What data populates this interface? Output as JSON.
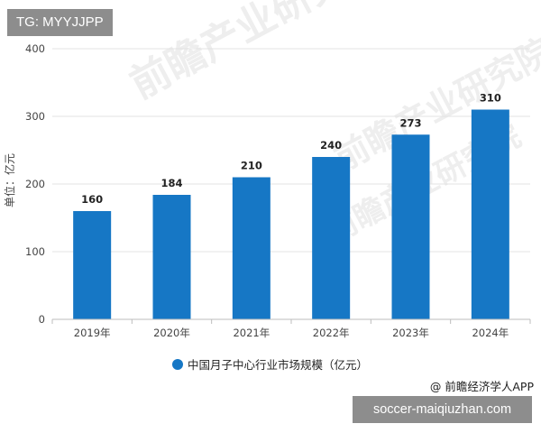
{
  "overlay_tag": "TG: MYYJJPP",
  "site_banner": "soccer-maiqiuzhan.com",
  "source_credit": "@ 前瞻经济学人APP",
  "watermark": "前瞻产业研究院",
  "colors": {
    "bar": "#1677c5",
    "grid": "#e3e3e3",
    "axis": "#bdbdbd",
    "tick_text": "#444444",
    "label_text": "#222222",
    "watermark": "#eeeeee"
  },
  "chart_data": {
    "type": "bar",
    "title": "",
    "xlabel": "",
    "ylabel": "单位：亿元",
    "categories": [
      "2019年",
      "2020年",
      "2021年",
      "2022年",
      "2023年",
      "2024年"
    ],
    "series": [
      {
        "name": "中国月子中心行业市场规模（亿元）",
        "values": [
          160,
          184,
          210,
          240,
          273,
          310
        ]
      }
    ],
    "data_labels": [
      "160",
      "184",
      "210",
      "240",
      "273",
      "310"
    ],
    "ylim": [
      0,
      400
    ],
    "yticks": [
      0,
      100,
      200,
      300,
      400
    ],
    "grid": true,
    "legend": "bottom-center"
  }
}
